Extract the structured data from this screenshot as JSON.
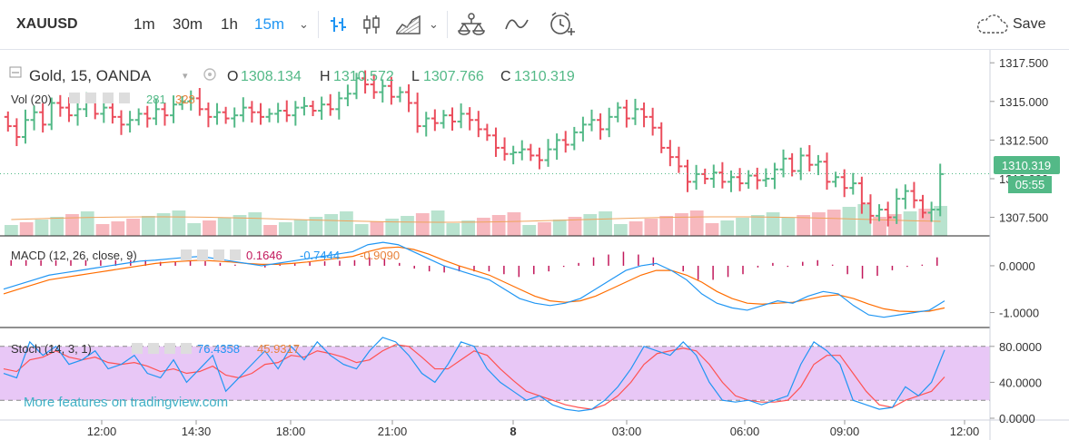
{
  "toolbar": {
    "symbol": "XAUUSD",
    "intervals": [
      "1m",
      "30m",
      "1h",
      "15m"
    ],
    "active_interval": "15m",
    "save_label": "Save"
  },
  "main_legend": {
    "title": "Gold, 15, OANDA",
    "open_label": "O",
    "open": "1308.134",
    "high_label": "H",
    "high": "1310.572",
    "low_label": "L",
    "low": "1307.766",
    "close_label": "C",
    "close": "1310.319"
  },
  "vol_legend": {
    "title": "Vol (20)",
    "value1": "281",
    "value2": "328"
  },
  "macd_legend": {
    "title": "MACD (12, 26, close, 9)",
    "hist": "0.1646",
    "macd": "-0.7444",
    "signal": "-0.9090"
  },
  "stoch_legend": {
    "title": "Stoch (14, 3, 1)",
    "k": "76.4358",
    "d": "45.9317"
  },
  "price_label": "1310.319",
  "countdown": "05:55",
  "watermark": "More features on tradingview.com",
  "colors": {
    "up": "#53b987",
    "down": "#eb4d5c",
    "vol_up": "#b9e3cf",
    "vol_down": "#f7b8be",
    "macd_line": "#2196f3",
    "signal_line": "#ff6d00",
    "hist": "#c2185b",
    "stoch_k": "#2196f3",
    "stoch_d": "#ff5252",
    "stoch_band": "#e8c7f6",
    "current_price": "#53b987"
  },
  "chart_data": [
    {
      "type": "candlestick",
      "name": "Gold, 15, OANDA",
      "y_ticks": [
        "1307.500",
        "1310.000",
        "1312.500",
        "1315.000",
        "1317.500"
      ],
      "ylim": [
        1306.3,
        1318.1
      ],
      "x_ticks": [
        "12:00",
        "14:30",
        "18:00",
        "21:00",
        "8",
        "03:00",
        "06:00",
        "09:00",
        "12:00"
      ],
      "last_price": 1310.319,
      "closes": [
        1313.4,
        1312.7,
        1313.8,
        1314.3,
        1313.5,
        1314.9,
        1314.6,
        1314.1,
        1314.5,
        1315.0,
        1314.2,
        1314.6,
        1314.0,
        1313.5,
        1313.8,
        1314.2,
        1313.9,
        1314.5,
        1314.1,
        1314.8,
        1315.0,
        1315.2,
        1314.5,
        1314.0,
        1314.3,
        1313.9,
        1314.1,
        1314.6,
        1314.3,
        1314.0,
        1314.2,
        1314.4,
        1314.1,
        1314.6,
        1314.7,
        1314.4,
        1314.8,
        1314.5,
        1315.2,
        1315.5,
        1316.5,
        1316.1,
        1315.6,
        1316.0,
        1315.3,
        1315.6,
        1314.9,
        1313.4,
        1313.9,
        1313.6,
        1314.1,
        1313.7,
        1314.2,
        1313.8,
        1313.2,
        1312.8,
        1312.0,
        1311.6,
        1311.7,
        1311.9,
        1311.5,
        1311.2,
        1311.9,
        1312.5,
        1312.2,
        1313.0,
        1313.5,
        1313.8,
        1313.2,
        1314.0,
        1314.6,
        1313.9,
        1314.5,
        1314.0,
        1313.3,
        1312.0,
        1311.4,
        1310.8,
        1309.8,
        1310.3,
        1310.0,
        1310.4,
        1309.8,
        1310.1,
        1309.7,
        1310.2,
        1309.9,
        1310.0,
        1310.6,
        1311.3,
        1310.5,
        1311.5,
        1310.9,
        1311.1,
        1309.8,
        1310.1,
        1309.4,
        1309.7,
        1308.4,
        1307.6,
        1308.0,
        1307.5,
        1308.7,
        1309.2,
        1308.6,
        1307.8,
        1308.0,
        1310.3
      ],
      "volume": {
        "values_label_1": "281",
        "values_label_2": "328"
      }
    },
    {
      "type": "line",
      "name": "MACD (12, 26, close, 9)",
      "y_ticks": [
        "0.0000",
        "-1.0000"
      ],
      "ylim": [
        -1.3,
        0.6
      ],
      "series": [
        {
          "name": "MACD",
          "values": [
            -0.5,
            -0.4,
            -0.3,
            -0.2,
            -0.15,
            -0.1,
            -0.05,
            0.0,
            0.05,
            0.1,
            0.12,
            0.15,
            0.18,
            0.2,
            0.15,
            0.1,
            0.05,
            0.0,
            0.05,
            0.1,
            0.15,
            0.2,
            0.25,
            0.3,
            0.45,
            0.5,
            0.45,
            0.3,
            0.15,
            0.0,
            -0.1,
            -0.2,
            -0.3,
            -0.5,
            -0.7,
            -0.8,
            -0.85,
            -0.8,
            -0.7,
            -0.5,
            -0.3,
            -0.1,
            0.0,
            0.05,
            -0.1,
            -0.3,
            -0.6,
            -0.8,
            -0.9,
            -0.95,
            -0.85,
            -0.75,
            -0.8,
            -0.65,
            -0.55,
            -0.6,
            -0.85,
            -1.05,
            -1.1,
            -1.05,
            -1.0,
            -0.95,
            -0.75
          ]
        },
        {
          "name": "Signal",
          "values": [
            -0.6,
            -0.5,
            -0.4,
            -0.3,
            -0.25,
            -0.2,
            -0.15,
            -0.1,
            -0.05,
            0.0,
            0.05,
            0.08,
            0.1,
            0.12,
            0.1,
            0.08,
            0.05,
            0.03,
            0.03,
            0.05,
            0.08,
            0.12,
            0.16,
            0.2,
            0.3,
            0.38,
            0.4,
            0.35,
            0.25,
            0.12,
            0.0,
            -0.1,
            -0.2,
            -0.35,
            -0.5,
            -0.65,
            -0.75,
            -0.78,
            -0.75,
            -0.65,
            -0.5,
            -0.35,
            -0.2,
            -0.1,
            -0.1,
            -0.2,
            -0.35,
            -0.55,
            -0.7,
            -0.8,
            -0.82,
            -0.8,
            -0.78,
            -0.72,
            -0.65,
            -0.62,
            -0.7,
            -0.82,
            -0.92,
            -0.97,
            -0.98,
            -0.97,
            -0.9
          ]
        },
        {
          "name": "Histogram",
          "values": [
            0.1,
            0.1,
            0.1,
            0.1,
            0.1,
            0.1,
            0.1,
            0.1,
            0.1,
            0.1,
            0.07,
            0.07,
            0.08,
            0.08,
            0.05,
            0.02,
            0.0,
            -0.03,
            0.02,
            0.05,
            0.07,
            0.08,
            0.09,
            0.1,
            0.15,
            0.12,
            0.05,
            -0.05,
            -0.1,
            -0.12,
            -0.1,
            -0.1,
            -0.1,
            -0.15,
            -0.2,
            -0.15,
            -0.1,
            -0.02,
            0.05,
            0.15,
            0.2,
            0.25,
            0.2,
            0.15,
            0.0,
            -0.1,
            -0.25,
            -0.25,
            -0.2,
            -0.15,
            -0.03,
            0.05,
            -0.02,
            0.07,
            0.1,
            0.02,
            -0.15,
            -0.23,
            -0.18,
            -0.08,
            -0.02,
            0.02,
            0.15
          ]
        }
      ]
    },
    {
      "type": "line",
      "name": "Stoch (14, 3, 1)",
      "y_ticks": [
        "80.0000",
        "40.0000",
        "0.0000"
      ],
      "ylim": [
        -2,
        100
      ],
      "band": [
        20,
        80
      ],
      "series": [
        {
          "name": "%K",
          "values": [
            50,
            45,
            85,
            70,
            80,
            60,
            65,
            75,
            55,
            60,
            70,
            50,
            45,
            65,
            40,
            55,
            70,
            30,
            45,
            60,
            75,
            55,
            80,
            65,
            85,
            70,
            60,
            55,
            75,
            90,
            85,
            70,
            50,
            40,
            60,
            85,
            80,
            55,
            40,
            30,
            20,
            25,
            15,
            10,
            8,
            10,
            20,
            35,
            55,
            80,
            75,
            70,
            85,
            70,
            40,
            20,
            18,
            20,
            15,
            20,
            25,
            60,
            85,
            75,
            60,
            20,
            15,
            10,
            12,
            35,
            25,
            40,
            76
          ]
        },
        {
          "name": "%D",
          "values": [
            55,
            52,
            65,
            68,
            75,
            68,
            65,
            68,
            62,
            60,
            62,
            58,
            52,
            55,
            50,
            52,
            58,
            48,
            45,
            50,
            60,
            62,
            70,
            68,
            75,
            72,
            68,
            62,
            65,
            75,
            82,
            80,
            68,
            55,
            55,
            65,
            75,
            70,
            55,
            42,
            30,
            25,
            20,
            15,
            12,
            10,
            15,
            25,
            40,
            60,
            72,
            75,
            78,
            75,
            60,
            40,
            25,
            20,
            18,
            18,
            20,
            35,
            60,
            70,
            70,
            50,
            30,
            15,
            12,
            20,
            25,
            30,
            46
          ]
        }
      ]
    }
  ]
}
